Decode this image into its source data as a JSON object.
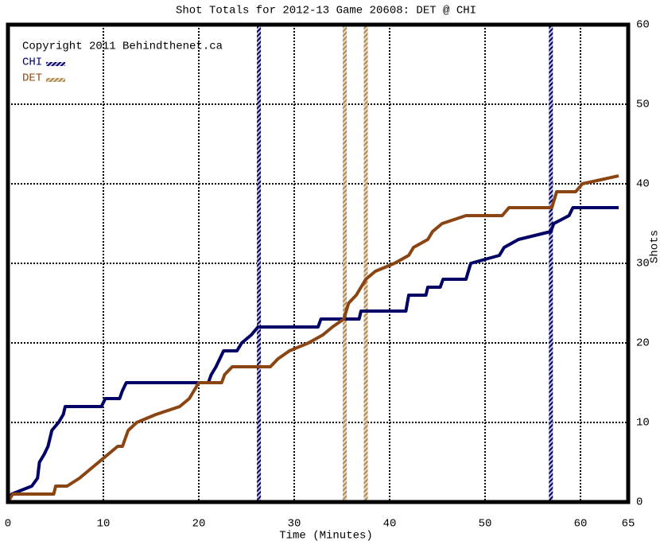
{
  "chart_data": {
    "type": "line",
    "title": "Shot Totals for 2012-13 Game 20608: DET @ CHI",
    "annotation": "Copyright 2011 Behindthenet.ca",
    "xlabel": "Time (Minutes)",
    "ylabel": "Shots",
    "xlim": [
      0,
      65
    ],
    "ylim": [
      0,
      60
    ],
    "xticks": [
      0,
      10,
      20,
      30,
      40,
      50,
      60,
      65
    ],
    "yticks": [
      0,
      10,
      20,
      30,
      40,
      50,
      60
    ],
    "grid": true,
    "series": [
      {
        "name": "CHI",
        "color": "#000066",
        "x": [
          0,
          0.4,
          2.5,
          3.1,
          3.3,
          3.8,
          4.2,
          4.6,
          5.3,
          5.8,
          6,
          9.8,
          10.2,
          11.7,
          12,
          12.4,
          21,
          21.3,
          21.8,
          22.2,
          22.6,
          24,
          24.5,
          25.5,
          26.2,
          32.5,
          32.8,
          36.8,
          37,
          41.7,
          42,
          43.8,
          44,
          45.3,
          45.6,
          48,
          48.5,
          51.5,
          52,
          53.5,
          56.9,
          57.2,
          58.8,
          59.2,
          64
        ],
        "values": [
          0,
          1,
          2,
          3,
          5,
          6,
          7,
          9,
          10,
          11,
          12,
          12,
          13,
          13,
          14,
          15,
          15,
          16,
          17,
          18,
          19,
          19,
          20,
          21,
          22,
          22,
          23,
          23,
          24,
          24,
          26,
          26,
          27,
          27,
          28,
          28,
          30,
          31,
          32,
          33,
          34,
          35,
          36,
          37,
          37
        ],
        "goals": [
          26.3,
          56.9
        ]
      },
      {
        "name": "DET",
        "color": "#8b4513",
        "x": [
          0,
          0.5,
          4.8,
          5,
          6.2,
          7.5,
          8.5,
          9.5,
          10.5,
          11.5,
          12,
          12.3,
          12.6,
          13.5,
          15.5,
          18,
          19,
          19.5,
          20,
          22.4,
          22.7,
          23.5,
          27.5,
          28.3,
          29.5,
          31.5,
          33,
          34,
          35.2,
          35.7,
          36.5,
          37.5,
          38.5,
          40.5,
          42,
          42.5,
          44,
          44.5,
          45.5,
          48,
          51.8,
          52.5,
          57,
          57.5,
          59.5,
          60.2,
          64
        ],
        "values": [
          0,
          1,
          1,
          2,
          2,
          3,
          4,
          5,
          6,
          7,
          7,
          8,
          9,
          10,
          11,
          12,
          13,
          14,
          15,
          15,
          16,
          17,
          17,
          18,
          19,
          20,
          21,
          22,
          23,
          25,
          26,
          28,
          29,
          30,
          31,
          32,
          33,
          34,
          35,
          36,
          36,
          37,
          37,
          39,
          39,
          40,
          41
        ],
        "goals": [
          35.3,
          37.5
        ]
      }
    ]
  }
}
